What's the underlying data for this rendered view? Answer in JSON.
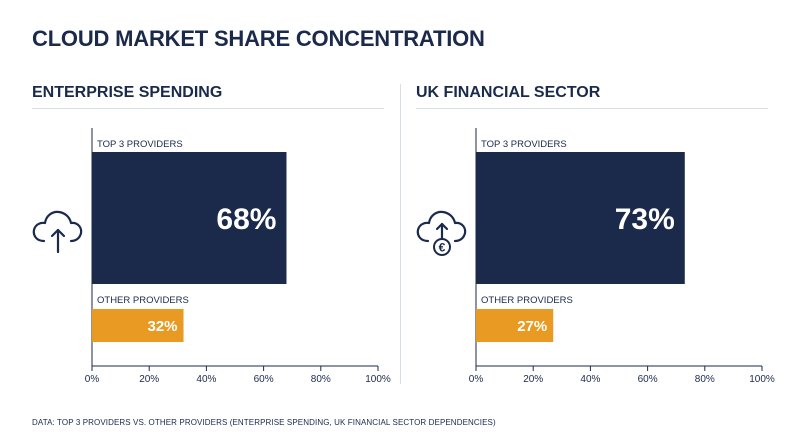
{
  "title": "CLOUD MARKET SHARE CONCENTRATION",
  "footnote": "DATA: TOP 3 PROVIDERS VS. OTHER PROVIDERS (ENTERPRISE SPENDING, UK FINANCIAL SECTOR DEPENDENCIES)",
  "colors": {
    "navy": "#1b2a4a",
    "orange": "#e89a22",
    "grid": "#d9dde4",
    "text": "#1b2a4a"
  },
  "panels": [
    {
      "title": "ENTERPRISE SPENDING",
      "icon": "cloud-upload-icon"
    },
    {
      "title": "UK FINANCIAL SECTOR",
      "icon": "cloud-euro-upload-icon"
    }
  ],
  "chart_data": [
    {
      "type": "bar",
      "title": "ENTERPRISE SPENDING",
      "categories": [
        "TOP 3 PROVIDERS",
        "OTHER PROVIDERS"
      ],
      "values": [
        68,
        32
      ],
      "data_labels": [
        "68%",
        "32%"
      ],
      "colors": [
        "#1b2a4a",
        "#e89a22"
      ],
      "xlim": [
        0,
        100
      ],
      "xticks": [
        "0%",
        "20%",
        "40%",
        "60%",
        "80%",
        "100%"
      ],
      "orientation": "horizontal",
      "grid": false
    },
    {
      "type": "bar",
      "title": "UK FINANCIAL SECTOR",
      "categories": [
        "TOP 3 PROVIDERS",
        "OTHER PROVIDERS"
      ],
      "values": [
        73,
        27
      ],
      "data_labels": [
        "73%",
        "27%"
      ],
      "colors": [
        "#1b2a4a",
        "#e89a22"
      ],
      "xlim": [
        0,
        100
      ],
      "xticks": [
        "0%",
        "20%",
        "40%",
        "60%",
        "80%",
        "100%"
      ],
      "orientation": "horizontal",
      "grid": false
    }
  ]
}
